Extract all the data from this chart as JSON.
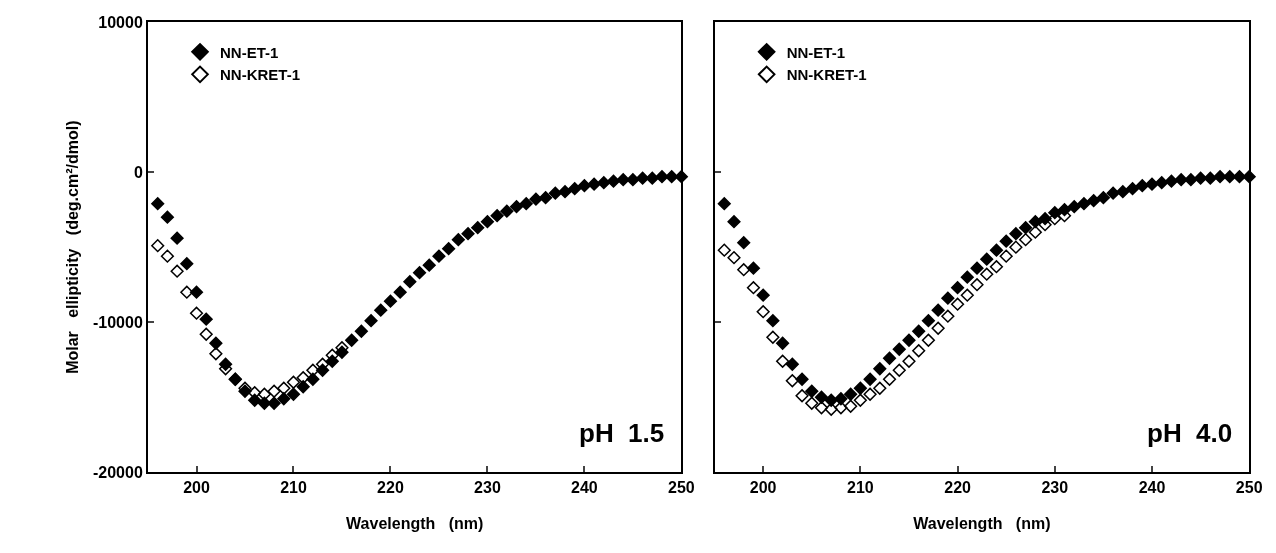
{
  "chart_data": [
    {
      "type": "scatter",
      "xlabel": "Wavelength   (nm)",
      "ylabel": "Molar   ellipticity   (deg.cm²/dmol)",
      "annotations": [
        "pH  1.5"
      ],
      "legend": "top left",
      "xlim": [
        195,
        250
      ],
      "xticks": [
        200,
        210,
        220,
        230,
        240,
        250
      ],
      "ylim": [
        -20000,
        10000
      ],
      "yticks": [
        -20000,
        -10000,
        0,
        10000
      ],
      "x": [
        196,
        197,
        198,
        199,
        200,
        201,
        202,
        203,
        204,
        205,
        206,
        207,
        208,
        209,
        210,
        211,
        212,
        213,
        214,
        215,
        216,
        217,
        218,
        219,
        220,
        221,
        222,
        223,
        224,
        225,
        226,
        227,
        228,
        229,
        230,
        231,
        232,
        233,
        234,
        235,
        236,
        237,
        238,
        239,
        240,
        241,
        242,
        243,
        244,
        245,
        246,
        247,
        248,
        249,
        250
      ],
      "series": [
        {
          "name": "NN-ET-1",
          "color": "#000000",
          "marker": "diamond",
          "values": [
            -2100,
            -3000,
            -4400,
            -6100,
            -8000,
            -9800,
            -11400,
            -12800,
            -13800,
            -14600,
            -15200,
            -15400,
            -15400,
            -15100,
            -14800,
            -14300,
            -13800,
            -13200,
            -12600,
            -12000,
            -11200,
            -10600,
            -9900,
            -9200,
            -8600,
            -8000,
            -7300,
            -6700,
            -6200,
            -5600,
            -5100,
            -4500,
            -4100,
            -3700,
            -3300,
            -2900,
            -2600,
            -2300,
            -2100,
            -1800,
            -1700,
            -1400,
            -1300,
            -1100,
            -900,
            -800,
            -700,
            -600,
            -500,
            -500,
            -400,
            -400,
            -300,
            -300,
            -300
          ]
        },
        {
          "name": "NN-KRET-1",
          "color": "#000000",
          "marker": "diamond-open",
          "values": [
            -4900,
            -5600,
            -6600,
            -8000,
            -9400,
            -10800,
            -12100,
            -13100,
            -13800,
            -14400,
            -14700,
            -14800,
            -14600,
            -14400,
            -14000,
            -13700,
            -13200,
            -12800,
            -12200,
            -11700,
            null,
            null,
            null,
            null,
            null,
            null,
            null,
            null,
            null,
            null,
            null,
            null,
            null,
            null,
            null,
            null,
            null,
            null,
            null,
            null,
            null,
            null,
            null,
            null,
            null,
            null,
            null,
            null,
            null,
            null,
            null,
            null,
            null,
            null,
            null
          ]
        }
      ]
    },
    {
      "type": "scatter",
      "xlabel": "Wavelength   (nm)",
      "annotations": [
        "pH  4.0"
      ],
      "legend": "top left",
      "tick_labels": "x",
      "xlim": [
        195,
        250
      ],
      "xticks": [
        200,
        210,
        220,
        230,
        240,
        250
      ],
      "ylim": [
        -20000,
        10000
      ],
      "yticks": [
        -20000,
        -10000,
        0,
        10000
      ],
      "x": [
        196,
        197,
        198,
        199,
        200,
        201,
        202,
        203,
        204,
        205,
        206,
        207,
        208,
        209,
        210,
        211,
        212,
        213,
        214,
        215,
        216,
        217,
        218,
        219,
        220,
        221,
        222,
        223,
        224,
        225,
        226,
        227,
        228,
        229,
        230,
        231,
        232,
        233,
        234,
        235,
        236,
        237,
        238,
        239,
        240,
        241,
        242,
        243,
        244,
        245,
        246,
        247,
        248,
        249,
        250
      ],
      "series": [
        {
          "name": "NN-ET-1",
          "color": "#000000",
          "marker": "diamond",
          "values": [
            -2100,
            -3300,
            -4700,
            -6400,
            -8200,
            -9900,
            -11400,
            -12800,
            -13800,
            -14600,
            -15000,
            -15200,
            -15100,
            -14800,
            -14400,
            -13800,
            -13100,
            -12400,
            -11800,
            -11200,
            -10600,
            -9900,
            -9200,
            -8400,
            -7700,
            -7000,
            -6400,
            -5800,
            -5200,
            -4600,
            -4100,
            -3700,
            -3300,
            -3100,
            -2700,
            -2500,
            -2300,
            -2100,
            -1900,
            -1700,
            -1400,
            -1300,
            -1100,
            -900,
            -800,
            -700,
            -600,
            -500,
            -500,
            -400,
            -400,
            -300,
            -300,
            -300,
            -300
          ]
        },
        {
          "name": "NN-KRET-1",
          "color": "#000000",
          "marker": "diamond-open",
          "values": [
            -5200,
            -5700,
            -6500,
            -7700,
            -9300,
            -11000,
            -12600,
            -13900,
            -14900,
            -15400,
            -15700,
            -15800,
            -15700,
            -15600,
            -15200,
            -14800,
            -14400,
            -13800,
            -13200,
            -12600,
            -11900,
            -11200,
            -10400,
            -9600,
            -8800,
            -8200,
            -7500,
            -6800,
            -6300,
            -5600,
            -5000,
            -4500,
            -4000,
            -3500,
            -3100,
            -2900,
            null,
            null,
            null,
            null,
            null,
            null,
            null,
            null,
            null,
            null,
            null,
            null,
            null,
            null,
            null,
            null,
            null,
            null,
            null
          ]
        }
      ]
    }
  ]
}
